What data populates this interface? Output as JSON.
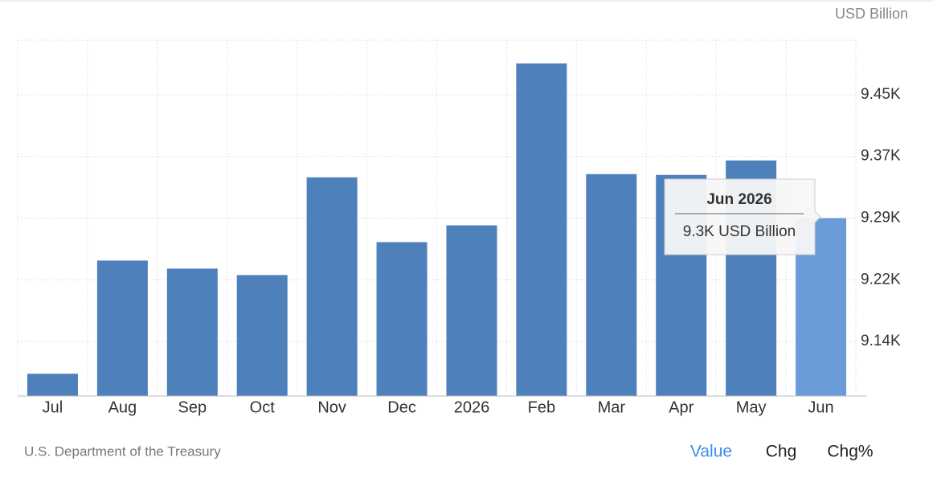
{
  "chart_data": {
    "type": "bar",
    "unit": "USD Billion",
    "categories": [
      "Jul",
      "Aug",
      "Sep",
      "Oct",
      "Nov",
      "Dec",
      "2026",
      "Feb",
      "Mar",
      "Apr",
      "May",
      "Jun"
    ],
    "values": [
      9100,
      9240.6,
      9230.6,
      9222.6,
      9344,
      9263.5,
      9284.4,
      9485.5,
      9348,
      9347,
      9365,
      9293.3
    ],
    "colors": [
      "#4e80bc",
      "#4e80bc",
      "#4e80bc",
      "#4e80bc",
      "#4e80bc",
      "#4e80bc",
      "#4e80bc",
      "#4e80bc",
      "#4e80bc",
      "#4e80bc",
      "#4e80bc",
      "#6a9bd8"
    ],
    "ylim": [
      9072.3,
      9514.4
    ],
    "yticks": [
      {
        "value": 9140,
        "label": "9.14K"
      },
      {
        "value": 9216.67,
        "label": "9.22K"
      },
      {
        "value": 9293.33,
        "label": "9.29K"
      },
      {
        "value": 9370,
        "label": "9.37K"
      },
      {
        "value": 9446.67,
        "label": "9.45K"
      }
    ],
    "grid": true,
    "tooltip": {
      "title": "Jun 2026",
      "text": "9.3K USD Billion"
    },
    "source": "U.S. Department of the Treasury",
    "tabs": [
      "Value",
      "Chg",
      "Chg%"
    ]
  }
}
